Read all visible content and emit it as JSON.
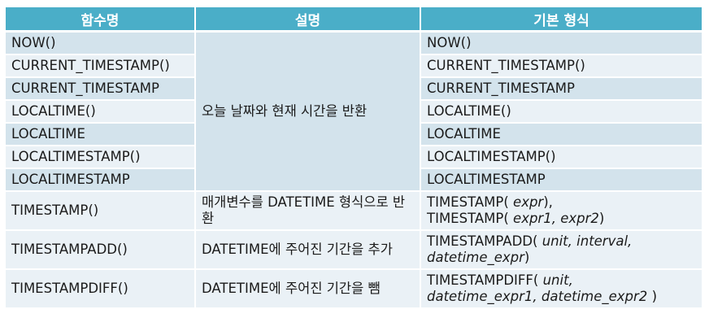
{
  "header": {
    "col1": "함수명",
    "col2": "설명",
    "col3": "기본 형식"
  },
  "rows": [
    {
      "name": "NOW()",
      "format": "NOW()"
    },
    {
      "name": "CURRENT_TIMESTAMP()",
      "format": "CURRENT_TIMESTAMP()"
    },
    {
      "name": "CURRENT_TIMESTAMP",
      "format": "CURRENT_TIMESTAMP"
    },
    {
      "name": "LOCALTIME()",
      "format": "LOCALTIME()"
    },
    {
      "name": "LOCALTIME",
      "format": "LOCALTIME"
    },
    {
      "name": "LOCALTIMESTAMP()",
      "format": "LOCALTIMESTAMP()"
    },
    {
      "name": "LOCALTIMESTAMP",
      "format": "LOCALTIMESTAMP"
    }
  ],
  "merged_desc": "오늘 날짜와 현재 시간을 반환",
  "timestamp": {
    "name": "TIMESTAMP()",
    "desc": "매개변수를 DATETIME 형식으로 반환",
    "fmt1_prefix": "TIMESTAMP(",
    "fmt1_arg": "expr",
    "fmt1_suffix": "),",
    "fmt2_prefix": "TIMESTAMP(",
    "fmt2_args": "expr1, expr2",
    "fmt2_suffix": ")"
  },
  "timestampadd": {
    "name": "TIMESTAMPADD()",
    "desc": "DATETIME에 주어진 기간을 추가",
    "fmt_prefix": "TIMESTAMPADD(",
    "fmt_args_line1": "unit, interval,",
    "fmt_args_line2": "datetime_expr",
    "fmt_suffix": ")"
  },
  "timestampdiff": {
    "name": "TIMESTAMPDIFF()",
    "desc": "DATETIME에 주어진 기간을 뺌",
    "fmt_prefix": "TIMESTAMPDIFF(",
    "fmt_args_line1": "unit,",
    "fmt_args_line2": "datetime_expr1, datetime_expr2",
    "fmt_suffix": ")"
  },
  "colors": {
    "header_bg": "#4aaec8",
    "row_dark": "#d3e3ec",
    "row_light": "#eaf1f6",
    "header_text": "#ffffff"
  }
}
